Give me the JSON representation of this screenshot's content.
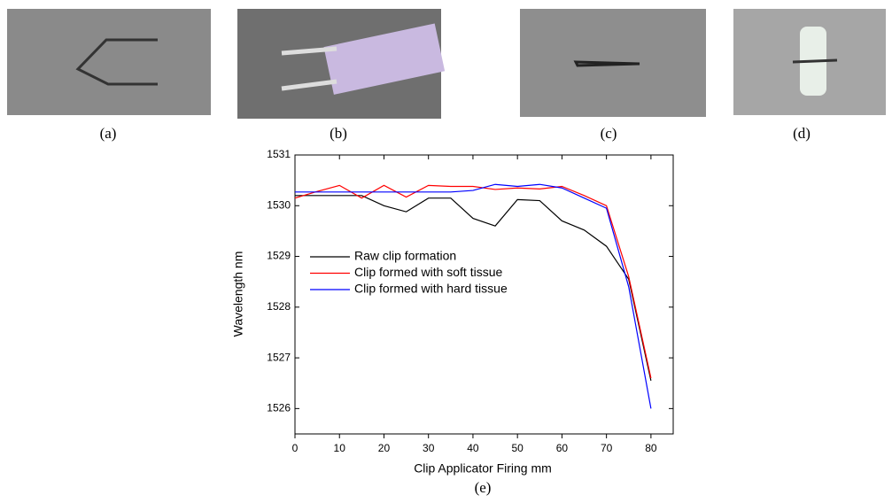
{
  "captions": [
    "(a)",
    "(b)",
    "(c)",
    "(d)",
    "(e)"
  ],
  "chart_data": {
    "type": "line",
    "xlabel": "Clip Applicator Firing mm",
    "ylabel": "Wavelength nm",
    "x": [
      0,
      5,
      10,
      15,
      20,
      25,
      30,
      35,
      40,
      45,
      50,
      55,
      60,
      65,
      70,
      75,
      80
    ],
    "series": [
      {
        "name": "Raw clip formation",
        "color": "#000000",
        "values": [
          1530.2,
          1530.2,
          1530.2,
          1530.2,
          1530.0,
          1529.88,
          1530.15,
          1530.15,
          1529.75,
          1529.6,
          1530.12,
          1530.1,
          1529.7,
          1529.52,
          1529.2,
          1528.55,
          1526.55
        ]
      },
      {
        "name": "Clip formed with soft tissue",
        "color": "#ff0000",
        "values": [
          1530.15,
          1530.28,
          1530.4,
          1530.15,
          1530.4,
          1530.17,
          1530.4,
          1530.38,
          1530.38,
          1530.32,
          1530.35,
          1530.33,
          1530.38,
          1530.2,
          1530.0,
          1528.6,
          1526.6
        ]
      },
      {
        "name": "Clip formed with hard tissue",
        "color": "#0000ff",
        "values": [
          1530.27,
          1530.27,
          1530.27,
          1530.27,
          1530.27,
          1530.27,
          1530.27,
          1530.27,
          1530.3,
          1530.42,
          1530.38,
          1530.42,
          1530.35,
          1530.15,
          1529.95,
          1528.4,
          1526.0
        ]
      }
    ],
    "xlim": [
      0,
      85
    ],
    "xticks": [
      0,
      10,
      20,
      30,
      40,
      50,
      60,
      70,
      80
    ],
    "ylim": [
      1525.5,
      1531
    ],
    "yticks": [
      1526,
      1527,
      1528,
      1529,
      1530,
      1531
    ],
    "legend": "left"
  }
}
